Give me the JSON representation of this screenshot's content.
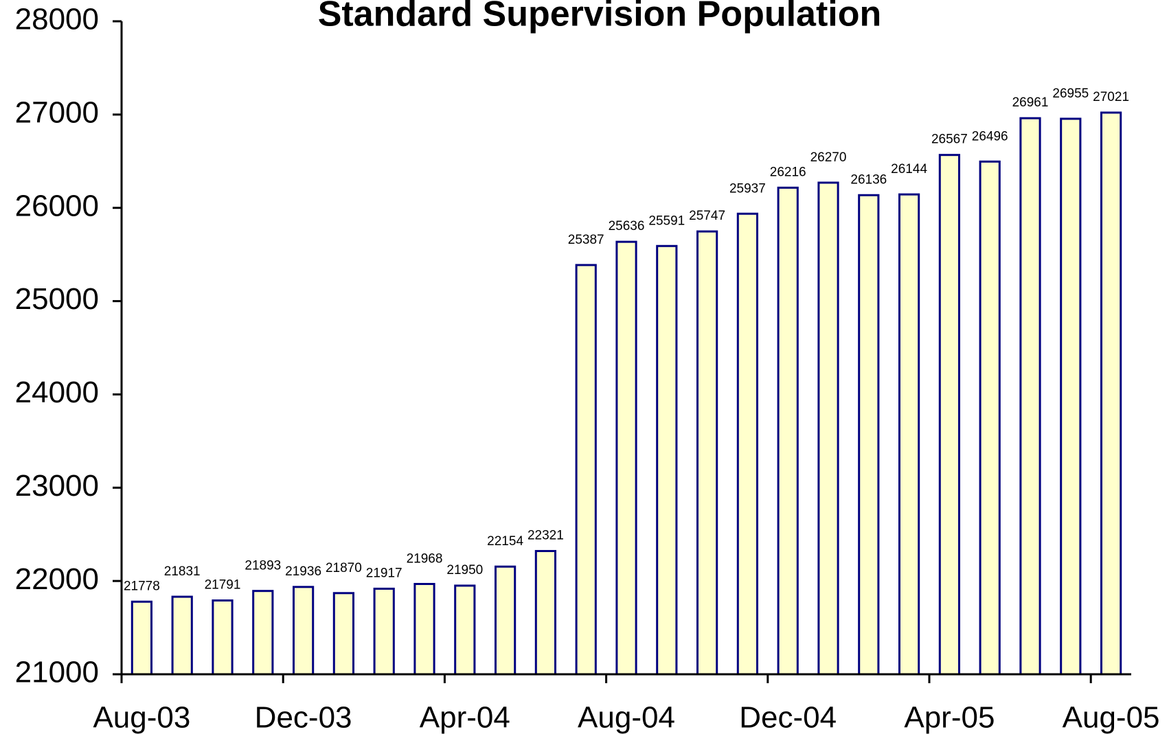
{
  "chart_data": {
    "type": "bar",
    "title": "Standard Supervision Population",
    "categories": [
      "Aug-03",
      null,
      null,
      null,
      "Dec-03",
      null,
      null,
      null,
      "Apr-04",
      null,
      null,
      null,
      "Aug-04",
      null,
      null,
      null,
      "Dec-04",
      null,
      null,
      null,
      "Apr-05",
      null,
      null,
      null,
      "Aug-05"
    ],
    "values": [
      21778,
      21831,
      21791,
      21893,
      21936,
      21870,
      21917,
      21968,
      21950,
      22154,
      22321,
      25387,
      25636,
      25591,
      25747,
      25937,
      26216,
      26270,
      26136,
      26144,
      26567,
      26496,
      26961,
      26955,
      27021
    ],
    "color": "#ffffcc",
    "edge_color": "#000080",
    "ylim": [
      21000,
      28000
    ],
    "yticks": [
      21000,
      22000,
      23000,
      24000,
      25000,
      26000,
      27000,
      28000
    ],
    "grid": false
  }
}
